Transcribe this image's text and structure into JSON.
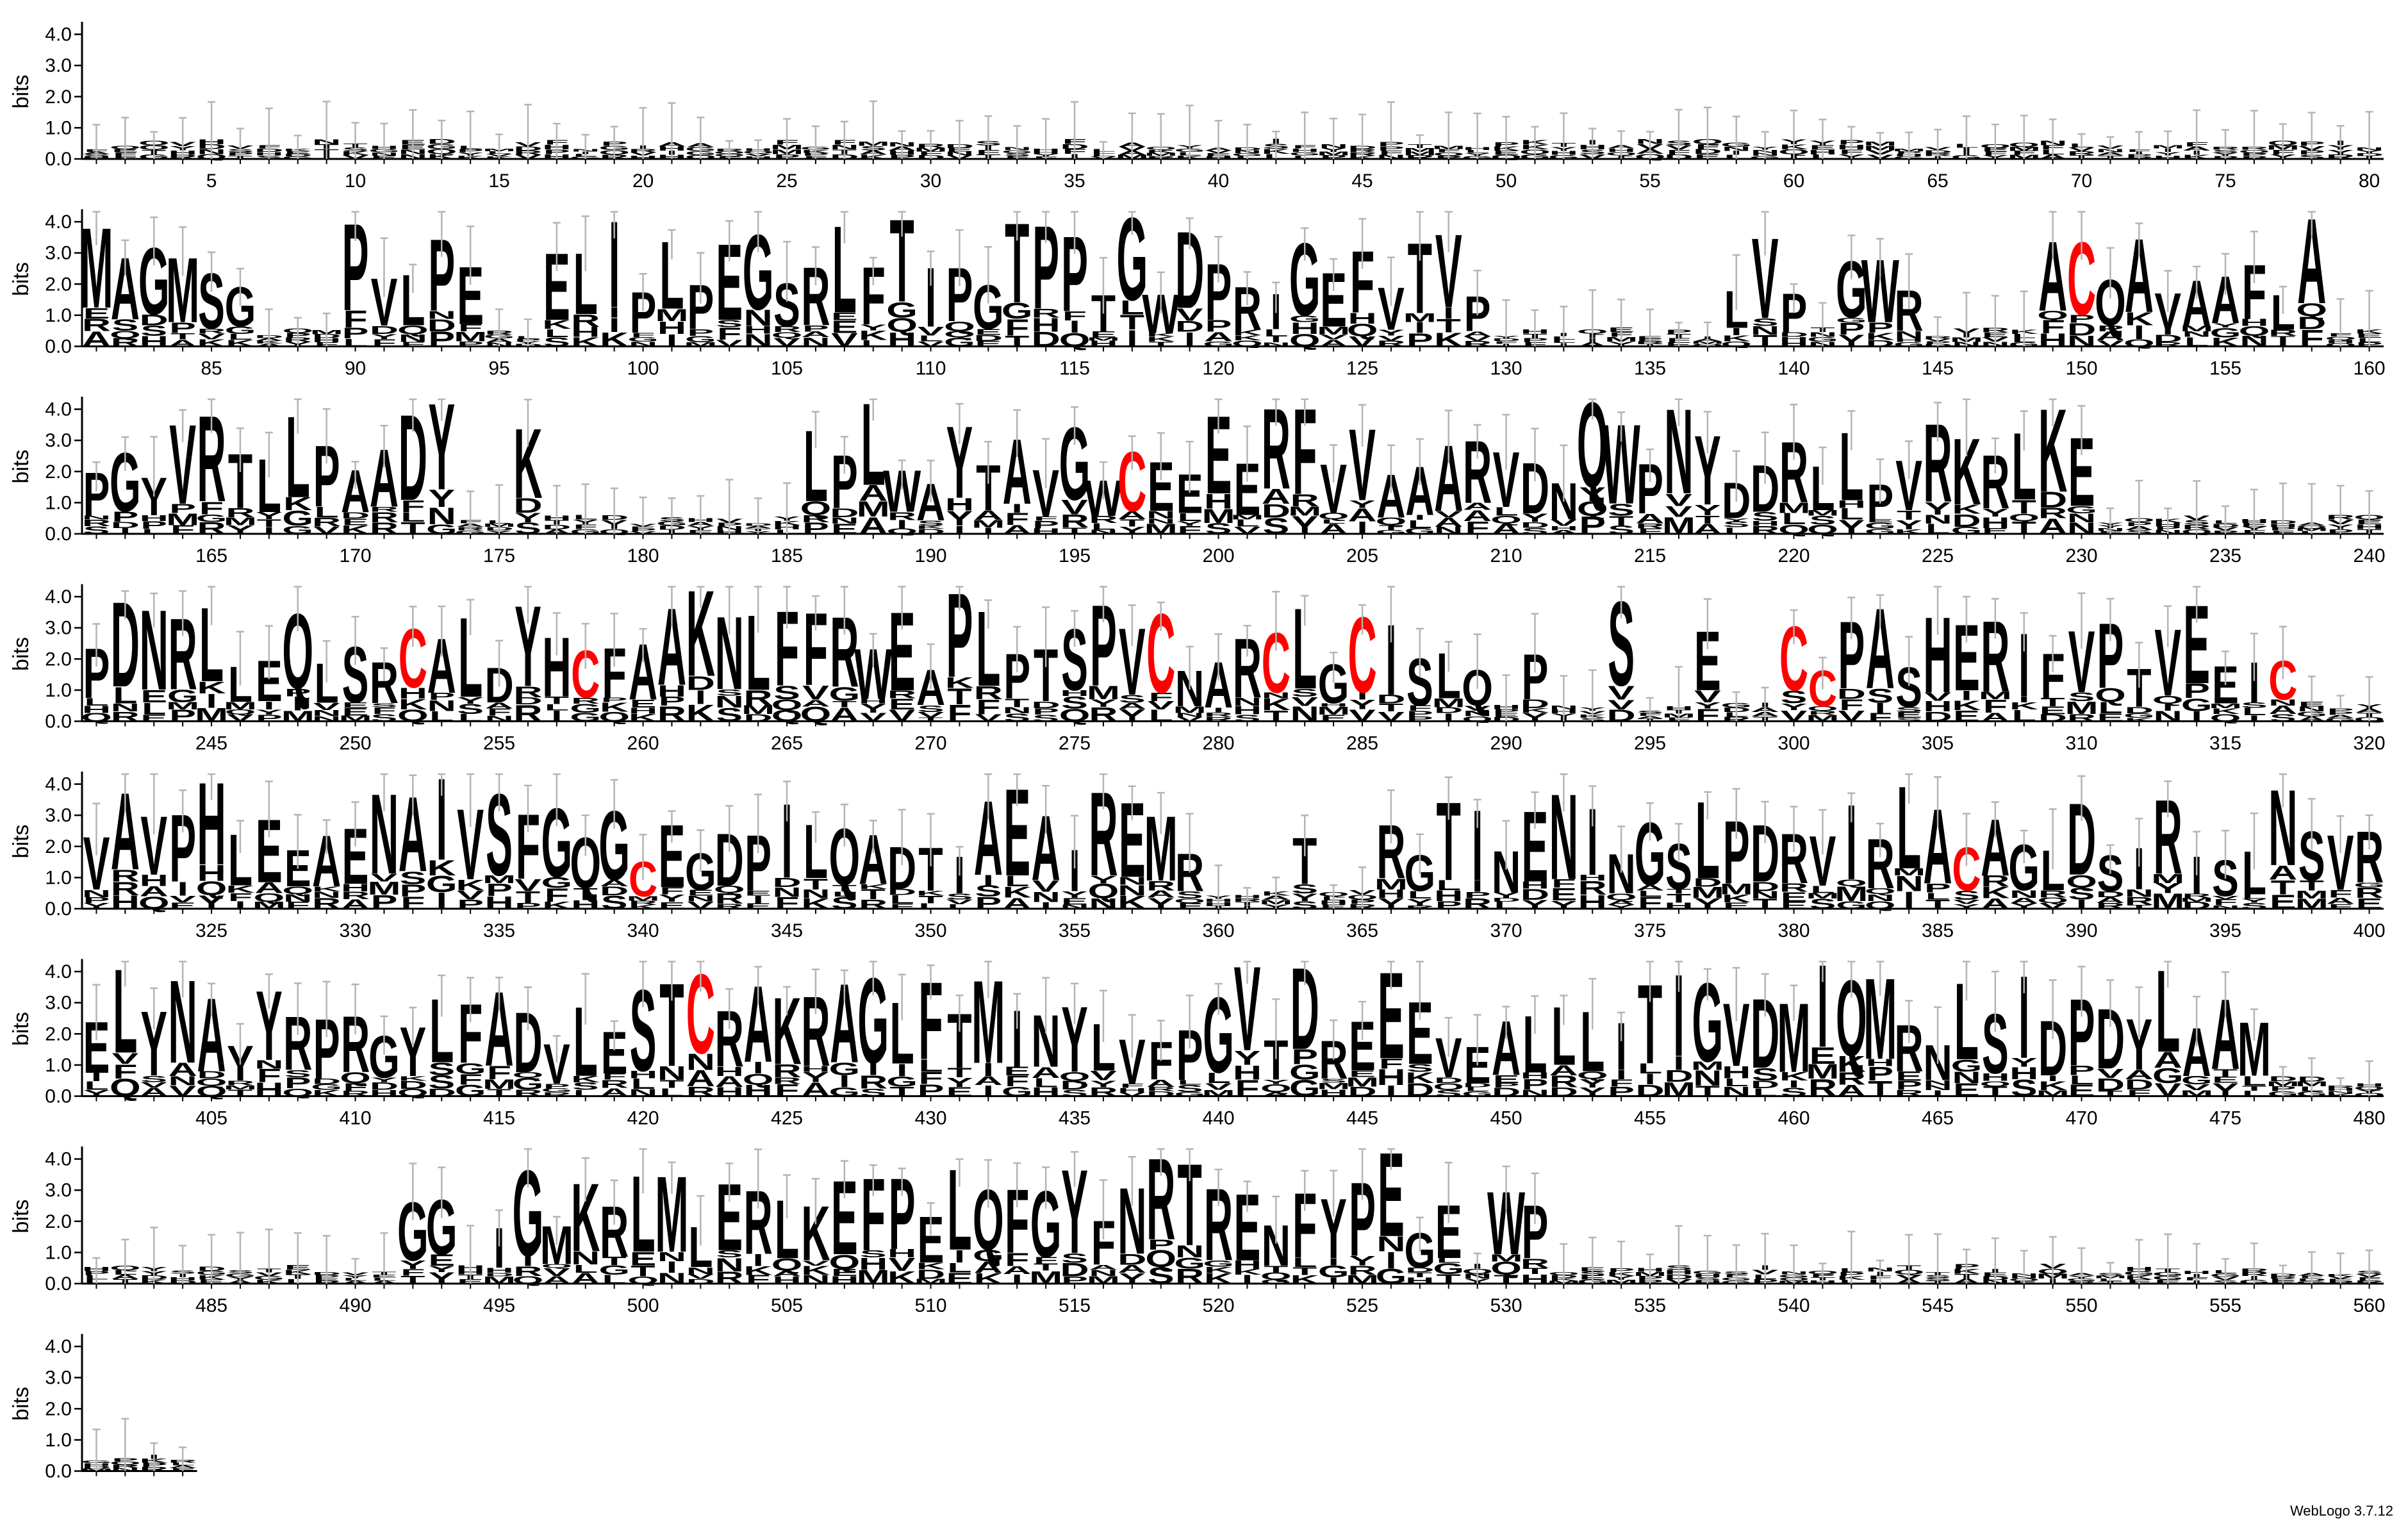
{
  "chart_data": {
    "type": "sequence-logo",
    "ylabel": "bits",
    "yticks": [
      "0.0",
      "1.0",
      "2.0",
      "3.0",
      "4.0"
    ],
    "ylim": [
      0,
      4.32
    ],
    "positions_per_row": 80,
    "total_positions": 564,
    "colors": {
      "default": "#000000",
      "cysteine": "#ff0000",
      "errorbar": "#b4b4b4"
    },
    "credit": "WebLogo 3.7.12",
    "rows": [
      "..................................................................................",
      "MAGMSG...PVLPE..ELIPLPEGSRLFTIPGTPPTGWDPRIGEFVTVP........LVP.GWR....ACQAVAAFLA",
      "PGYVRTLLPAADY..K.........LPLWAYTAVGWCEEEERFVVAAARVDNQWPNYDDRLLPVRKRLKE",
      "PDNRLLEQLSRCALDYHCFAAKNLFFRWEAPLPTSPVCNARCLGCISLQ.P..S..E..CCPASHERIFVPTVEEIC",
      "VAVPHLEEAENAIVSFGQGCEGDPILQADTIAEAIREMR...T..RGTINENINGSLPDRVIRLACAGLDSIRISLNSVR",
      "ELYNAYYRPRGYLFADVLESTCRAKRAGLFTMINYLVFPGVTDREEEVEALLLITIGVDMIQMRNLSIDPDYLAAM",
      "...........GG.IGMKRLMLERLKEFPELQFGYFNRTRENFYPEGE.WP.........................",
      "...."
    ],
    "letter_heights": {}
  }
}
